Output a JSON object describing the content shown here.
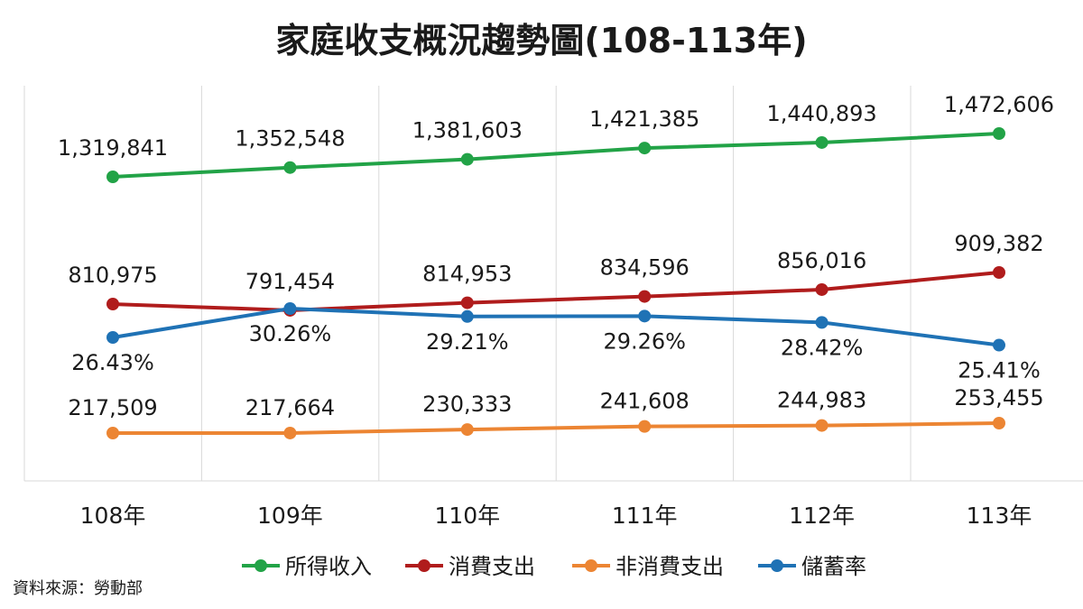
{
  "chart_data": {
    "type": "line",
    "title": "家庭收支概況趨勢圖(108-113年)",
    "categories": [
      "108年",
      "109年",
      "110年",
      "111年",
      "112年",
      "113年"
    ],
    "source": "資料來源：勞動部",
    "legend_position": "bottom",
    "grid": "vertical",
    "series": [
      {
        "name": "所得收入",
        "color": "#22a347",
        "values": [
          1319841,
          1352548,
          1381603,
          1421385,
          1440893,
          1472606
        ],
        "labels": [
          "1,319,841",
          "1,352,548",
          "1,381,603",
          "1,421,385",
          "1,440,893",
          "1,472,606"
        ]
      },
      {
        "name": "消費支出",
        "color": "#b01c1c",
        "values": [
          810975,
          791454,
          814953,
          834596,
          856016,
          909382
        ],
        "labels": [
          "810,975",
          "791,454",
          "814,953",
          "834,596",
          "856,016",
          "909,382"
        ]
      },
      {
        "name": "非消費支出",
        "color": "#ec8533",
        "values": [
          217509,
          217664,
          230333,
          241608,
          244983,
          253455
        ],
        "labels": [
          "217,509",
          "217,664",
          "230,333",
          "241,608",
          "244,983",
          "253,455"
        ]
      },
      {
        "name": "儲蓄率",
        "color": "#1f72b5",
        "values": [
          26.43,
          30.26,
          29.21,
          29.26,
          28.42,
          25.41
        ],
        "labels": [
          "26.43%",
          "30.26%",
          "29.21%",
          "29.26%",
          "28.42%",
          "25.41%"
        ]
      }
    ]
  }
}
